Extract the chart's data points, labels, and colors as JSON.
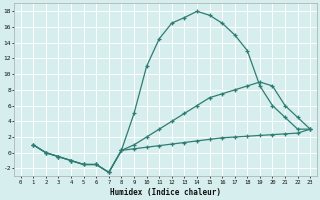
{
  "xlabel": "Humidex (Indice chaleur)",
  "bg_color": "#d6eeed",
  "grid_color": "#ffffff",
  "line_color": "#2e7d72",
  "xlim": [
    -0.5,
    23.5
  ],
  "ylim": [
    -3,
    19
  ],
  "xticks": [
    0,
    1,
    2,
    3,
    4,
    5,
    6,
    7,
    8,
    9,
    10,
    11,
    12,
    13,
    14,
    15,
    16,
    17,
    18,
    19,
    20,
    21,
    22,
    23
  ],
  "yticks": [
    -2,
    0,
    2,
    4,
    6,
    8,
    10,
    12,
    14,
    16,
    18
  ],
  "line1_x": [
    1,
    2,
    3,
    4,
    5,
    6,
    7,
    8,
    9,
    10,
    11,
    12,
    13,
    14,
    15,
    16,
    17,
    18,
    19,
    20,
    21,
    22,
    23
  ],
  "line1_y": [
    1,
    0,
    -0.5,
    -1.0,
    -1.5,
    -1.5,
    -2.5,
    0.3,
    5.0,
    11.0,
    14.5,
    16.5,
    17.2,
    18.0,
    17.5,
    16.5,
    15.0,
    13.0,
    8.5,
    6.0,
    4.5,
    3.0,
    3.0
  ],
  "line2_x": [
    1,
    2,
    3,
    4,
    5,
    6,
    7,
    8,
    9,
    10,
    11,
    12,
    13,
    14,
    15,
    16,
    17,
    18,
    19,
    20,
    21,
    22,
    23
  ],
  "line2_y": [
    1,
    0,
    -0.5,
    -1.0,
    -1.5,
    -1.5,
    -2.5,
    0.3,
    1.0,
    2.0,
    3.0,
    4.0,
    5.0,
    6.0,
    7.0,
    7.5,
    8.0,
    8.5,
    9.0,
    8.5,
    6.0,
    4.5,
    3.0
  ],
  "line3_x": [
    1,
    2,
    3,
    4,
    5,
    6,
    7,
    8,
    9,
    10,
    11,
    12,
    13,
    14,
    15,
    16,
    17,
    18,
    19,
    20,
    21,
    22,
    23
  ],
  "line3_y": [
    1,
    0,
    -0.5,
    -1.0,
    -1.5,
    -1.5,
    -2.5,
    0.3,
    0.5,
    0.7,
    0.9,
    1.1,
    1.3,
    1.5,
    1.7,
    1.9,
    2.0,
    2.1,
    2.2,
    2.3,
    2.4,
    2.5,
    3.0
  ]
}
